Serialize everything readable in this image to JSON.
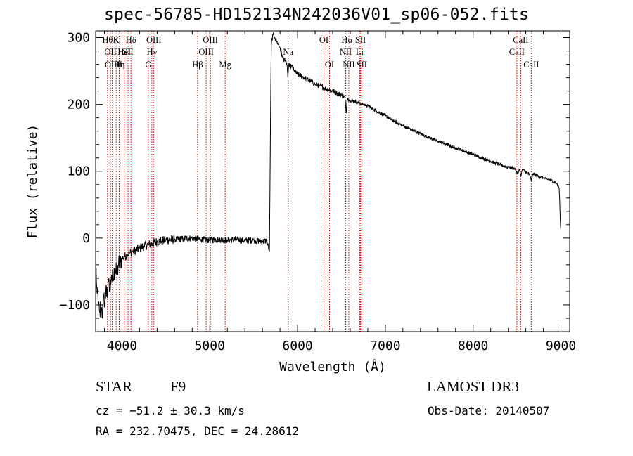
{
  "title": "spec-56785-HD152134N242036V01_sp06-052.fits",
  "info": {
    "type_label": "STAR",
    "subclass": "F9",
    "survey": "LAMOST DR3",
    "cz": "cz = −51.2 ± 30.3 km/s",
    "obs_date": "Obs-Date: 20140507",
    "radec": "RA = 232.70475, DEC =  24.28612"
  },
  "chart_data": {
    "type": "line",
    "title": "spec-56785-HD152134N242036V01_sp06-052.fits",
    "xlabel": "Wavelength (Å)",
    "ylabel": "Flux (relative)",
    "xlim": [
      3700,
      9100
    ],
    "ylim": [
      -140,
      310
    ],
    "xticks": [
      4000,
      5000,
      6000,
      7000,
      8000,
      9000
    ],
    "yticks": [
      -100,
      0,
      100,
      200,
      300
    ],
    "series": [
      {
        "name": "flux",
        "color": "#000000",
        "x": [
          3700,
          3715,
          3730,
          3745,
          3760,
          3775,
          3790,
          3805,
          3820,
          3835,
          3850,
          3865,
          3880,
          3900,
          3920,
          3940,
          3960,
          3980,
          4000,
          4030,
          4060,
          4090,
          4120,
          4160,
          4200,
          4250,
          4300,
          4350,
          4400,
          4450,
          4500,
          4600,
          4700,
          4800,
          4900,
          5000,
          5100,
          5200,
          5300,
          5400,
          5500,
          5600,
          5650,
          5680,
          5690,
          5700,
          5720,
          5740,
          5760,
          5780,
          5800,
          5830,
          5860,
          5880,
          5890,
          5900,
          5910,
          5930,
          5960,
          6000,
          6050,
          6100,
          6150,
          6200,
          6250,
          6300,
          6350,
          6400,
          6450,
          6500,
          6540,
          6555,
          6562,
          6570,
          6600,
          6650,
          6700,
          6750,
          6800,
          6900,
          7000,
          7100,
          7200,
          7300,
          7400,
          7500,
          7600,
          7700,
          7800,
          7900,
          8000,
          8100,
          8200,
          8300,
          8400,
          8480,
          8500,
          8530,
          8545,
          8560,
          8600,
          8640,
          8662,
          8680,
          8700,
          8750,
          8800,
          8850,
          8900,
          8950,
          8980,
          8990,
          8995,
          9000
        ],
        "y": [
          -30,
          -80,
          -95,
          -110,
          -105,
          -120,
          -85,
          -100,
          -70,
          -90,
          -60,
          -80,
          -55,
          -65,
          -45,
          -55,
          -40,
          -35,
          -30,
          -28,
          -25,
          -22,
          -20,
          -18,
          -15,
          -12,
          -10,
          -8,
          -5,
          -5,
          -3,
          -2,
          -1,
          0,
          -2,
          -3,
          -2,
          -3,
          -2,
          -4,
          -3,
          -5,
          -4,
          -20,
          150,
          290,
          305,
          300,
          295,
          290,
          285,
          270,
          265,
          260,
          240,
          262,
          255,
          258,
          250,
          245,
          242,
          238,
          235,
          230,
          228,
          225,
          222,
          220,
          217,
          214,
          210,
          185,
          205,
          210,
          206,
          205,
          202,
          200,
          198,
          190,
          183,
          175,
          168,
          162,
          156,
          150,
          145,
          140,
          135,
          130,
          125,
          120,
          115,
          110,
          106,
          104,
          96,
          103,
          92,
          103,
          99,
          95,
          86,
          96,
          95,
          92,
          90,
          88,
          86,
          82,
          75,
          40,
          20,
          10
        ]
      }
    ],
    "lines": [
      {
        "wl": 3835,
        "label": "Hθ",
        "row": 0
      },
      {
        "wl": 3869,
        "label": "OII",
        "row": 1
      },
      {
        "wl": 3889,
        "label": "OIII",
        "row": 2
      },
      {
        "wl": 3934,
        "label": "K",
        "row": 0
      },
      {
        "wl": 3968,
        "label": "H",
        "row": 2
      },
      {
        "wl": 3970,
        "label": "Hη",
        "row": 2
      },
      {
        "wl": 4026,
        "label": "HeI",
        "row": 1
      },
      {
        "wl": 4069,
        "label": "SII",
        "row": 1
      },
      {
        "wl": 4102,
        "label": "Hδ",
        "row": 0
      },
      {
        "wl": 4300,
        "label": "G",
        "row": 2
      },
      {
        "wl": 4340,
        "label": "Hγ",
        "row": 1
      },
      {
        "wl": 4363,
        "label": "OIII",
        "row": 0
      },
      {
        "wl": 4861,
        "label": "Hβ",
        "row": 2
      },
      {
        "wl": 4959,
        "label": "OIII",
        "row": 1
      },
      {
        "wl": 5007,
        "label": "OIII",
        "row": 0
      },
      {
        "wl": 5175,
        "label": "Mg",
        "row": 2
      },
      {
        "wl": 5893,
        "label": "Na",
        "row": 1
      },
      {
        "wl": 6300,
        "label": "OI",
        "row": 0
      },
      {
        "wl": 6364,
        "label": "OI",
        "row": 2
      },
      {
        "wl": 6548,
        "label": "NII",
        "row": 1
      },
      {
        "wl": 6563,
        "label": "Hα",
        "row": 0
      },
      {
        "wl": 6584,
        "label": "NII",
        "row": 2
      },
      {
        "wl": 6708,
        "label": "Li",
        "row": 1
      },
      {
        "wl": 6717,
        "label": "SII",
        "row": 0
      },
      {
        "wl": 6731,
        "label": "SII",
        "row": 2
      },
      {
        "wl": 8498,
        "label": "CaII",
        "row": 1
      },
      {
        "wl": 8542,
        "label": "CaII",
        "row": 0
      },
      {
        "wl": 8662,
        "label": "CaII",
        "row": 2
      }
    ]
  }
}
